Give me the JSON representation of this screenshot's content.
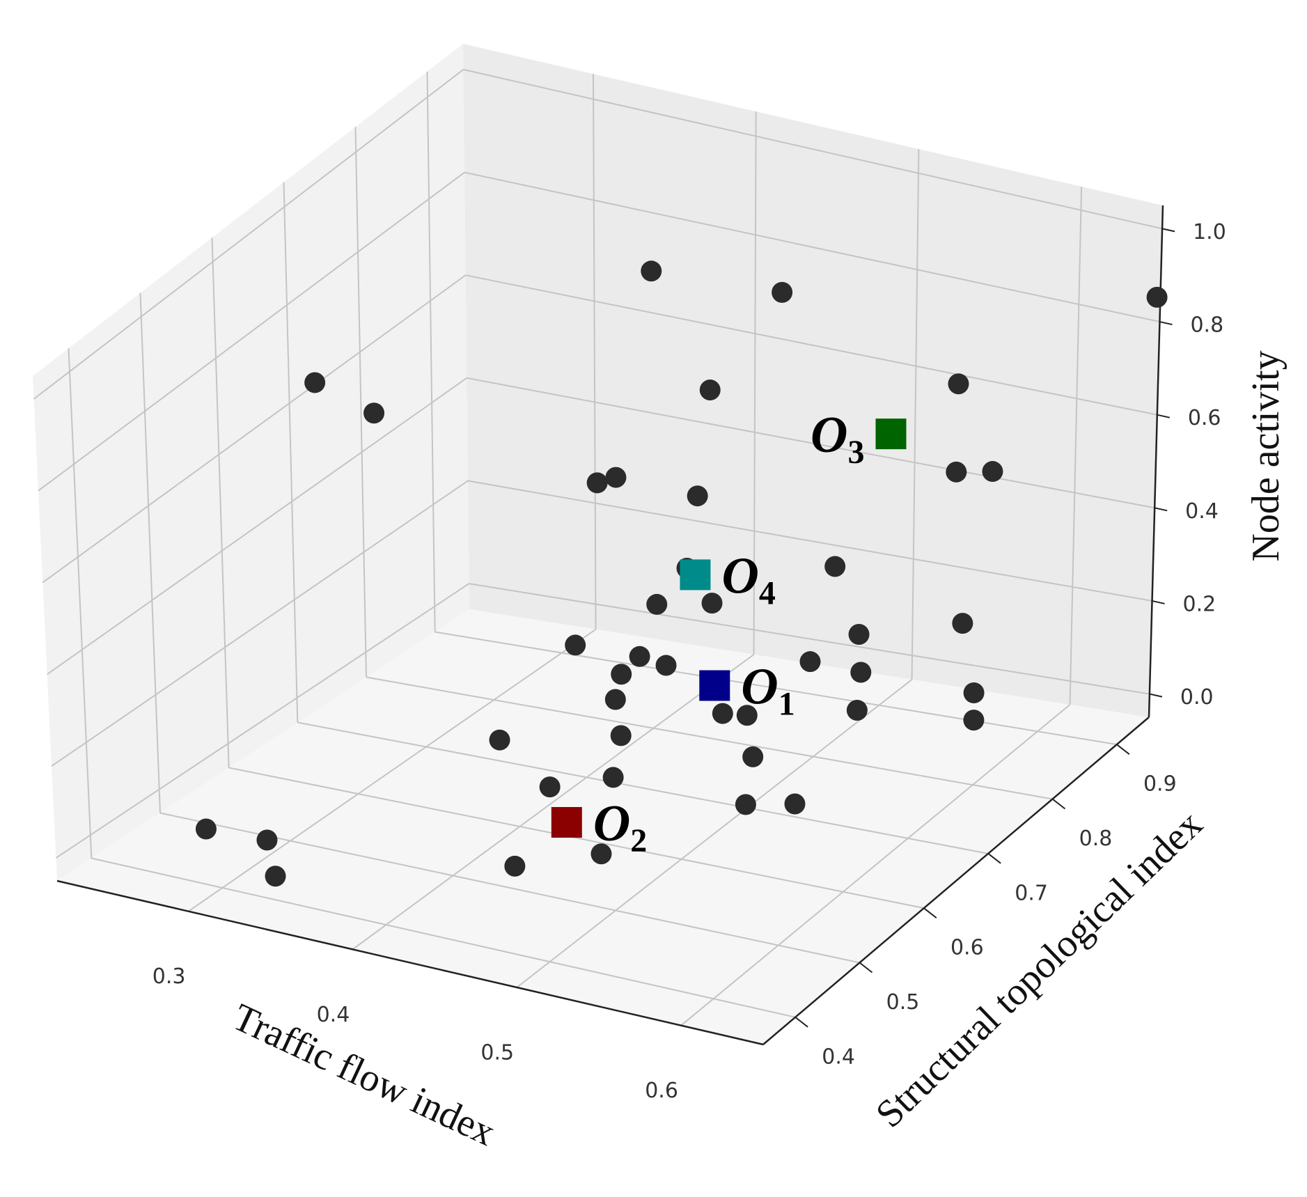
{
  "chart_data": {
    "type": "scatter",
    "projection": "3d",
    "xlabel": "Traffic flow index",
    "ylabel": "Structural topological index",
    "zlabel": "Node activity",
    "xticks": [
      "0.3",
      "0.4",
      "0.5",
      "0.6"
    ],
    "yticks": [
      "0.4",
      "0.5",
      "0.6",
      "0.7",
      "0.8",
      "0.9"
    ],
    "zticks": [
      "0.0",
      "0.2",
      "0.4",
      "0.6",
      "0.8",
      "1.0"
    ],
    "xlim": [
      0.22,
      0.65
    ],
    "ylim": [
      0.35,
      0.95
    ],
    "zlim": [
      -0.05,
      1.05
    ],
    "grid": true,
    "points_color": "#2b2b2b",
    "points": [
      [
        0.3,
        0.38,
        0.1
      ],
      [
        0.32,
        0.42,
        0.05
      ],
      [
        0.35,
        0.36,
        0.06
      ],
      [
        0.48,
        0.4,
        0.15
      ],
      [
        0.44,
        0.55,
        0.12
      ],
      [
        0.5,
        0.48,
        0.1
      ],
      [
        0.45,
        0.62,
        0.07
      ],
      [
        0.54,
        0.6,
        0.1
      ],
      [
        0.55,
        0.65,
        0.05
      ],
      [
        0.41,
        0.72,
        0.1
      ],
      [
        0.5,
        0.7,
        0.15
      ],
      [
        0.56,
        0.72,
        0.18
      ],
      [
        0.52,
        0.82,
        0.2
      ],
      [
        0.55,
        0.75,
        0.22
      ],
      [
        0.6,
        0.8,
        0.15
      ],
      [
        0.48,
        0.88,
        0.25
      ],
      [
        0.56,
        0.88,
        0.18
      ],
      [
        0.38,
        0.8,
        0.05
      ],
      [
        0.33,
        0.85,
        0.03
      ],
      [
        0.36,
        0.9,
        0.08
      ],
      [
        0.4,
        0.78,
        0.12
      ],
      [
        0.43,
        0.68,
        0.08
      ],
      [
        0.46,
        0.76,
        0.06
      ],
      [
        0.52,
        0.66,
        0.12
      ],
      [
        0.58,
        0.85,
        0.02
      ],
      [
        0.42,
        0.84,
        0.18
      ],
      [
        0.38,
        0.62,
        0.1
      ],
      [
        0.47,
        0.7,
        0.6
      ],
      [
        0.58,
        0.6,
        0.45
      ],
      [
        0.4,
        0.72,
        0.55
      ],
      [
        0.42,
        0.7,
        0.6
      ],
      [
        0.25,
        0.75,
        0.55
      ],
      [
        0.28,
        0.6,
        0.8
      ],
      [
        0.4,
        0.8,
        0.9
      ],
      [
        0.48,
        0.8,
        0.92
      ],
      [
        0.52,
        0.6,
        1.0
      ],
      [
        0.58,
        0.82,
        0.78
      ],
      [
        0.62,
        0.72,
        0.75
      ],
      [
        0.63,
        0.75,
        0.72
      ],
      [
        0.66,
        0.92,
        0.9
      ],
      [
        0.48,
        0.66,
        0.5
      ],
      [
        0.5,
        0.58,
        0.4
      ]
    ],
    "markers": [
      {
        "label": "O",
        "sub": "1",
        "color": "#00008b",
        "x": 0.48,
        "y": 0.7,
        "z": 0.2
      },
      {
        "label": "O",
        "sub": "2",
        "color": "#8b0000",
        "x": 0.45,
        "y": 0.55,
        "z": 0.05
      },
      {
        "label": "O",
        "sub": "3",
        "color": "#006400",
        "x": 0.58,
        "y": 0.72,
        "z": 0.8
      },
      {
        "label": "O",
        "sub": "4",
        "color": "#008b8b",
        "x": 0.46,
        "y": 0.72,
        "z": 0.4
      }
    ]
  }
}
